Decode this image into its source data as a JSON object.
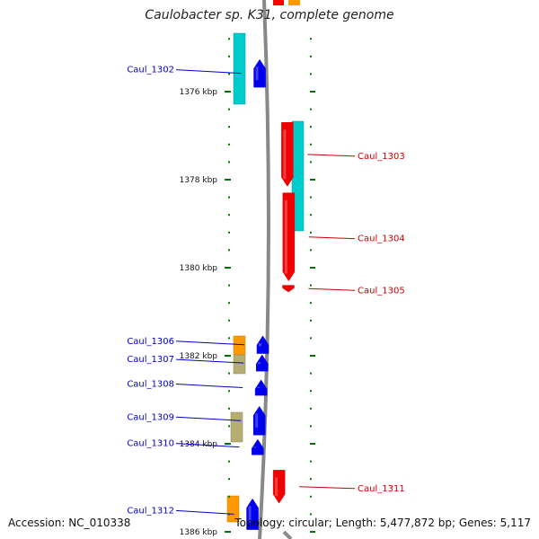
{
  "title": "Caulobacter sp. K31, complete genome",
  "footer": {
    "accession": "Accession: NC_010338",
    "summary": "Topology: circular; Length: 5,477,872 bp; Genes: 5,117"
  },
  "colors": {
    "forward_cds": "#0000ee",
    "reverse_cds": "#ee0000",
    "cyan_gene": "#00cccc",
    "orange_gene": "#ff9900",
    "khaki_gene": "#b5ad72",
    "backbone": "#888888",
    "tick": "#007700",
    "label_forward": "#0000cc",
    "label_reverse": "#cc0000"
  },
  "scale": [
    {
      "label": "1376 kbp",
      "kbp": 1376
    },
    {
      "label": "1378 kbp",
      "kbp": 1378
    },
    {
      "label": "1380 kbp",
      "kbp": 1380
    },
    {
      "label": "1382 kbp",
      "kbp": 1382
    },
    {
      "label": "1384 kbp",
      "kbp": 1384
    },
    {
      "label": "1386 kbp",
      "kbp": 1386
    }
  ],
  "genes": [
    {
      "label": "Caul_1302",
      "strand": "forward",
      "start_kbp": 1375.27,
      "end_kbp": 1375.9
    },
    {
      "label": "Caul_1303",
      "strand": "reverse",
      "start_kbp": 1376.7,
      "end_kbp": 1378.15
    },
    {
      "label": "Caul_1304",
      "strand": "reverse",
      "start_kbp": 1378.3,
      "end_kbp": 1380.3
    },
    {
      "label": "Caul_1305",
      "strand": "reverse",
      "start_kbp": 1380.4,
      "end_kbp": 1380.55
    },
    {
      "label": "Caul_1306",
      "strand": "forward",
      "start_kbp": 1381.55,
      "end_kbp": 1381.95
    },
    {
      "label": "Caul_1307",
      "strand": "forward",
      "start_kbp": 1381.98,
      "end_kbp": 1382.35
    },
    {
      "label": "Caul_1308",
      "strand": "forward",
      "start_kbp": 1382.55,
      "end_kbp": 1382.9
    },
    {
      "label": "Caul_1309",
      "strand": "forward",
      "start_kbp": 1383.15,
      "end_kbp": 1383.8
    },
    {
      "label": "Caul_1310",
      "strand": "forward",
      "start_kbp": 1383.9,
      "end_kbp": 1384.25
    },
    {
      "label": "Caul_1311",
      "strand": "reverse",
      "start_kbp": 1384.6,
      "end_kbp": 1385.35
    },
    {
      "label": "Caul_1312",
      "strand": "forward",
      "start_kbp": 1385.25,
      "end_kbp": 1385.95
    }
  ]
}
